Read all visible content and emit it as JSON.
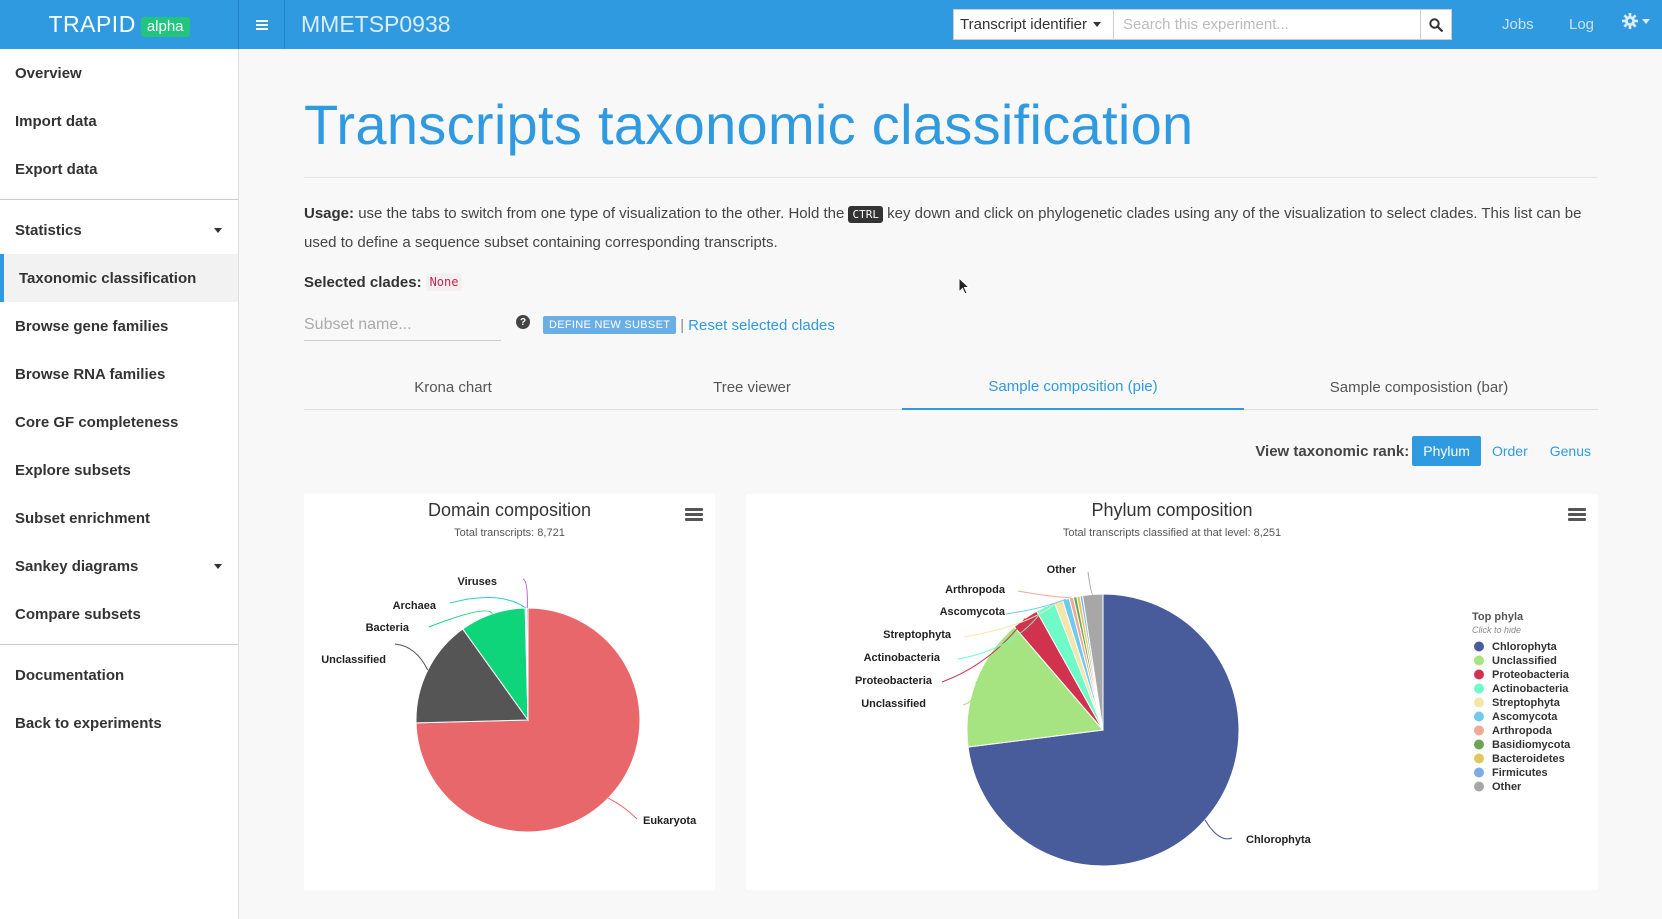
{
  "brand": {
    "name": "TRAPID",
    "badge": "alpha"
  },
  "experiment": {
    "title": "MMETSP0938"
  },
  "search": {
    "type": "Transcript identifier",
    "placeholder": "Search this experiment..."
  },
  "topnav": {
    "jobs": "Jobs",
    "log": "Log"
  },
  "icons": {
    "menu": "hamburger-icon",
    "search": "search-icon",
    "settings": "gear-icon",
    "help": "question-circle-icon",
    "chart_menu": "chart-menu-icon",
    "cursor": "mouse-pointer-icon"
  },
  "sidebar": {
    "group1": [
      "Overview",
      "Import data",
      "Export data"
    ],
    "statistics": "Statistics",
    "active": "Taxonomic classification",
    "group2": [
      "Browse gene families",
      "Browse RNA families",
      "Core GF completeness",
      "Explore subsets",
      "Subset enrichment"
    ],
    "sankey": "Sankey diagrams",
    "compare": "Compare subsets",
    "group3": [
      "Documentation",
      "Back to experiments"
    ]
  },
  "page": {
    "title": "Transcripts taxonomic classification",
    "usage_label": "Usage:",
    "usage_text_1": " use the tabs to switch from one type of visualization to the other. Hold the ",
    "usage_key": "CTRL",
    "usage_text_2": " key down and click on phylogenetic clades using any of the visualization to select clades. This list can be used to define a sequence subset containing corresponding transcripts.",
    "selected_label": "Selected clades:",
    "selected_value": "None",
    "subset_placeholder": "Subset name...",
    "define_button": "DEFINE NEW SUBSET",
    "separator": "|",
    "reset_link": "Reset selected clades"
  },
  "tabs": [
    "Krona chart",
    "Tree viewer",
    "Sample composition (pie)",
    "Sample composistion (bar)"
  ],
  "active_tab": 2,
  "rank": {
    "label": "View taxonomic rank:",
    "options": [
      "Phylum",
      "Order",
      "Genus"
    ],
    "active": 0
  },
  "colors": {
    "accent": "#2f9ae0",
    "badge": "#23c47e"
  },
  "chart_data": [
    {
      "type": "pie",
      "title": "Domain composition",
      "subtitle": "Total transcripts: 8,721",
      "slices": [
        {
          "name": "Eukaryota",
          "value": 74.6,
          "color": "#e8676b"
        },
        {
          "name": "Unclassified",
          "value": 15.5,
          "color": "#555555"
        },
        {
          "name": "Bacteria",
          "value": 9.5,
          "color": "#0fd57a"
        },
        {
          "name": "Archaea",
          "value": 0.2,
          "color": "#2ad0c8"
        },
        {
          "name": "Viruses",
          "value": 0.2,
          "color": "#c060d0"
        }
      ]
    },
    {
      "type": "pie",
      "title": "Phylum composition",
      "subtitle": "Total transcripts classified at that level: 8,251",
      "legend_title": "Top phyla",
      "legend_subtitle": "Click to hide",
      "slices": [
        {
          "name": "Chlorophyta",
          "value": 73.0,
          "color": "#485c9b"
        },
        {
          "name": "Unclassified",
          "value": 15.7,
          "color": "#a6e381"
        },
        {
          "name": "Proteobacteria",
          "value": 3.2,
          "color": "#d1334f"
        },
        {
          "name": "Actinobacteria",
          "value": 2.3,
          "color": "#6efbc7"
        },
        {
          "name": "Streptophyta",
          "value": 1.0,
          "color": "#f4e6a8"
        },
        {
          "name": "Ascomycota",
          "value": 0.8,
          "color": "#6fcaee"
        },
        {
          "name": "Arthropoda",
          "value": 0.5,
          "color": "#f0a898"
        },
        {
          "name": "Basidiomycota",
          "value": 0.4,
          "color": "#6aa64f"
        },
        {
          "name": "Bacteroidetes",
          "value": 0.4,
          "color": "#e2c761"
        },
        {
          "name": "Firmicutes",
          "value": 0.3,
          "color": "#7aaee4"
        },
        {
          "name": "Other",
          "value": 2.4,
          "color": "#a7a7a7"
        }
      ]
    }
  ]
}
